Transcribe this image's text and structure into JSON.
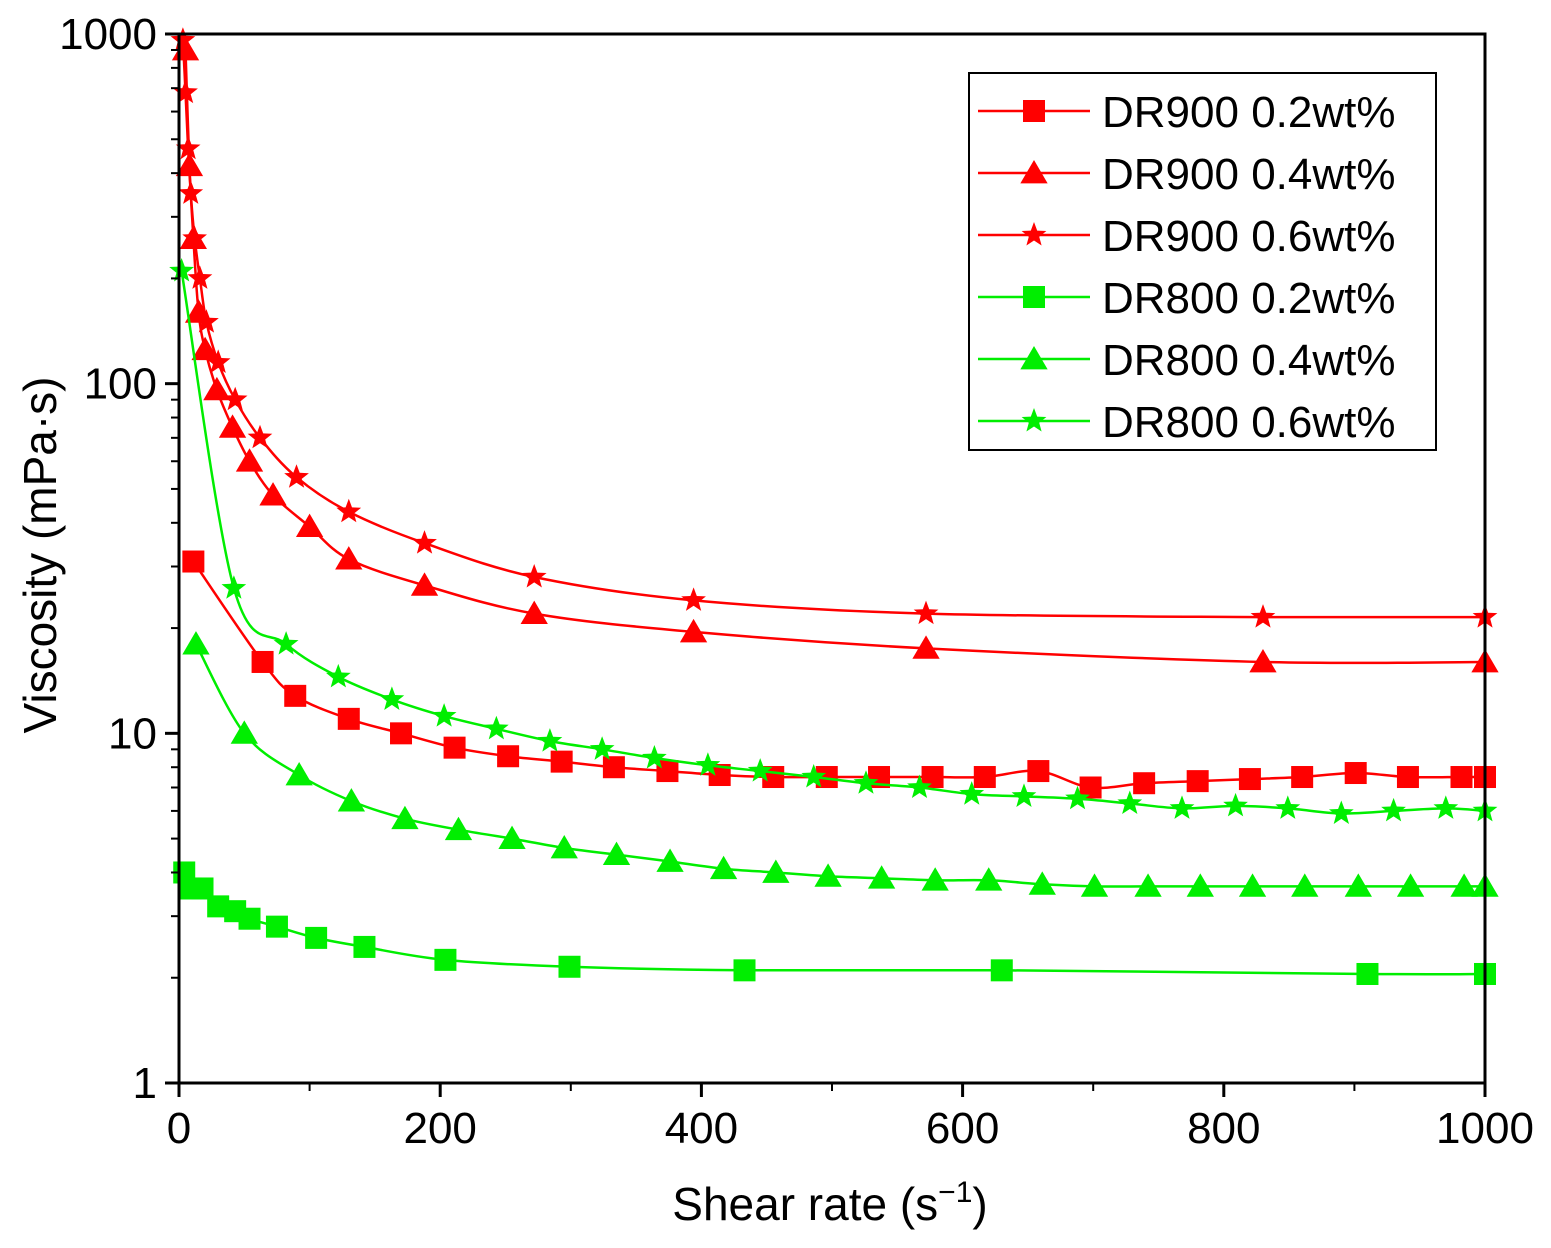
{
  "chart_data": {
    "type": "line",
    "xlabel": "Shear rate (s",
    "xlabel_sup": "−1",
    "xlabel_close": ")",
    "ylabel": "Viscosity (mPa·s)",
    "xlim": [
      0,
      1000
    ],
    "ylim": [
      1,
      1000
    ],
    "yscale": "log",
    "x_ticks": [
      0,
      200,
      400,
      600,
      800,
      1000
    ],
    "x_tick_labels": [
      "0",
      "200",
      "400",
      "600",
      "800",
      "1000"
    ],
    "y_ticks": [
      1,
      10,
      100,
      1000
    ],
    "y_tick_labels": [
      "1",
      "10",
      "100",
      "1000"
    ],
    "legend_position": "top-right",
    "series": [
      {
        "name": "DR900 0.2wt%",
        "color": "#ff0000",
        "marker": "square",
        "x": [
          11,
          64,
          89,
          130,
          170,
          211,
          252,
          293,
          333,
          374,
          414,
          455,
          496,
          536,
          577,
          617,
          658,
          698,
          739,
          780,
          820,
          860,
          901,
          941,
          982,
          1000
        ],
        "y": [
          31,
          16,
          12.8,
          11,
          10,
          9.1,
          8.6,
          8.3,
          8.0,
          7.8,
          7.6,
          7.5,
          7.5,
          7.5,
          7.5,
          7.5,
          7.8,
          7.0,
          7.2,
          7.3,
          7.4,
          7.5,
          7.7,
          7.5,
          7.5,
          7.5
        ]
      },
      {
        "name": "DR900 0.4wt%",
        "color": "#ff0000",
        "marker": "triangle",
        "x": [
          5,
          8,
          11,
          15,
          20,
          29,
          41,
          54,
          72,
          100,
          130,
          188,
          272,
          394,
          572,
          830,
          1000
        ],
        "y": [
          900,
          420,
          260,
          160,
          125,
          96,
          75,
          60,
          48,
          39,
          31.5,
          26.5,
          22,
          19.5,
          17.5,
          16,
          16
        ]
      },
      {
        "name": "DR900 0.6wt%",
        "color": "#ff0000",
        "marker": "star",
        "x": [
          3,
          5,
          7,
          9,
          12,
          16,
          21,
          30,
          43,
          62,
          90,
          130,
          188,
          272,
          394,
          572,
          830,
          1000
        ],
        "y": [
          960,
          680,
          470,
          350,
          260,
          200,
          150,
          115,
          90,
          70,
          54,
          43,
          35,
          28,
          24,
          22,
          21.5,
          21.5
        ]
      },
      {
        "name": "DR800 0.2wt%",
        "color": "#00ee00",
        "marker": "square",
        "x": [
          4,
          9,
          18,
          30,
          43,
          54,
          75,
          105,
          142,
          204,
          299,
          433,
          630,
          910,
          1000
        ],
        "y": [
          4.0,
          3.6,
          3.6,
          3.2,
          3.1,
          2.95,
          2.8,
          2.6,
          2.45,
          2.25,
          2.15,
          2.1,
          2.1,
          2.05,
          2.05
        ]
      },
      {
        "name": "DR800 0.4wt%",
        "color": "#00ee00",
        "marker": "triangle",
        "x": [
          13,
          50,
          92,
          132,
          173,
          214,
          255,
          295,
          335,
          376,
          417,
          457,
          497,
          538,
          579,
          620,
          661,
          701,
          742,
          782,
          822,
          862,
          903,
          943,
          984,
          1000
        ],
        "y": [
          18,
          10,
          7.6,
          6.4,
          5.7,
          5.3,
          5.0,
          4.7,
          4.5,
          4.3,
          4.1,
          4.0,
          3.9,
          3.85,
          3.8,
          3.8,
          3.7,
          3.65,
          3.65,
          3.65,
          3.65,
          3.65,
          3.65,
          3.65,
          3.65,
          3.65
        ]
      },
      {
        "name": "DR800 0.6wt%",
        "color": "#00ee00",
        "marker": "star",
        "x": [
          2,
          42,
          82,
          122,
          163,
          203,
          243,
          284,
          324,
          364,
          405,
          445,
          486,
          526,
          567,
          607,
          647,
          688,
          728,
          768,
          809,
          849,
          890,
          930,
          970,
          1000
        ],
        "y": [
          210,
          26,
          18,
          14.5,
          12.5,
          11.2,
          10.3,
          9.5,
          9.0,
          8.5,
          8.1,
          7.8,
          7.5,
          7.2,
          7.0,
          6.7,
          6.6,
          6.5,
          6.3,
          6.1,
          6.2,
          6.1,
          5.9,
          6.0,
          6.1,
          6.0
        ]
      }
    ]
  }
}
